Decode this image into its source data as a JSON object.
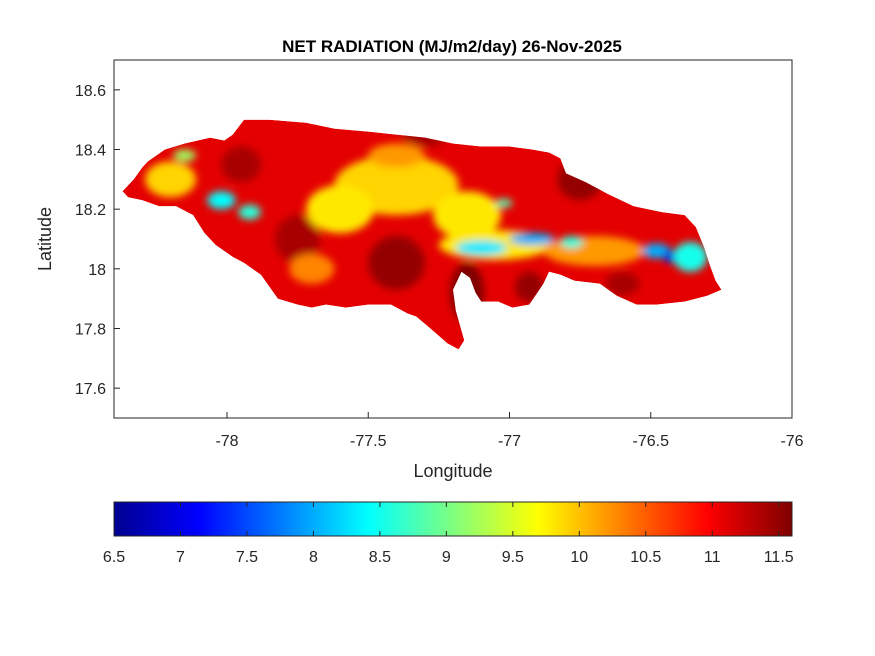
{
  "chart_data": {
    "type": "heatmap",
    "title": "NET RADIATION (MJ/m2/day) 26-Nov-2025",
    "xlabel": "Longitude",
    "ylabel": "Latitude",
    "xlim": [
      -78.4,
      -76
    ],
    "ylim": [
      17.5,
      18.7
    ],
    "xticks": [
      -78,
      -77.5,
      -77,
      -76.5,
      -76
    ],
    "yticks": [
      17.6,
      17.8,
      18,
      18.2,
      18.4,
      18.6
    ],
    "xtick_labels": [
      "-78",
      "-77.5",
      "-77",
      "-76.5",
      "-76"
    ],
    "ytick_labels": [
      "17.6",
      "17.8",
      "18",
      "18.2",
      "18.4",
      "18.6"
    ],
    "colorbar": {
      "colormap": "jet",
      "range": [
        6.5,
        11.6
      ],
      "ticks": [
        6.5,
        7,
        7.5,
        8,
        8.5,
        9,
        9.5,
        10,
        10.5,
        11,
        11.5
      ],
      "tick_labels": [
        "6.5",
        "7",
        "7.5",
        "8",
        "8.5",
        "9",
        "9.5",
        "10",
        "10.5",
        "11",
        "11.5"
      ],
      "orientation": "horizontal",
      "placement": "bottom"
    },
    "region_outline": [
      [
        -78.37,
        18.26
      ],
      [
        -78.33,
        18.3
      ],
      [
        -78.3,
        18.34
      ],
      [
        -78.28,
        18.36
      ],
      [
        -78.22,
        18.4
      ],
      [
        -78.15,
        18.42
      ],
      [
        -78.06,
        18.44
      ],
      [
        -78.01,
        18.43
      ],
      [
        -77.98,
        18.45
      ],
      [
        -77.94,
        18.5
      ],
      [
        -77.85,
        18.5
      ],
      [
        -77.72,
        18.49
      ],
      [
        -77.62,
        18.47
      ],
      [
        -77.5,
        18.46
      ],
      [
        -77.4,
        18.45
      ],
      [
        -77.3,
        18.44
      ],
      [
        -77.2,
        18.42
      ],
      [
        -77.1,
        18.41
      ],
      [
        -77.0,
        18.41
      ],
      [
        -76.92,
        18.4
      ],
      [
        -76.86,
        18.39
      ],
      [
        -76.82,
        18.37
      ],
      [
        -76.8,
        18.32
      ],
      [
        -76.73,
        18.29
      ],
      [
        -76.65,
        18.25
      ],
      [
        -76.56,
        18.21
      ],
      [
        -76.46,
        18.19
      ],
      [
        -76.38,
        18.18
      ],
      [
        -76.34,
        18.14
      ],
      [
        -76.31,
        18.07
      ],
      [
        -76.29,
        18.01
      ],
      [
        -76.27,
        17.96
      ],
      [
        -76.25,
        17.93
      ],
      [
        -76.3,
        17.91
      ],
      [
        -76.38,
        17.89
      ],
      [
        -76.48,
        17.88
      ],
      [
        -76.55,
        17.88
      ],
      [
        -76.62,
        17.91
      ],
      [
        -76.68,
        17.95
      ],
      [
        -76.77,
        17.96
      ],
      [
        -76.82,
        17.98
      ],
      [
        -76.86,
        17.99
      ],
      [
        -76.88,
        17.95
      ],
      [
        -76.93,
        17.88
      ],
      [
        -76.99,
        17.87
      ],
      [
        -77.04,
        17.89
      ],
      [
        -77.1,
        17.89
      ],
      [
        -77.12,
        17.92
      ],
      [
        -77.14,
        17.97
      ],
      [
        -77.17,
        17.99
      ],
      [
        -77.2,
        17.93
      ],
      [
        -77.19,
        17.86
      ],
      [
        -77.16,
        17.76
      ],
      [
        -77.18,
        17.73
      ],
      [
        -77.22,
        17.75
      ],
      [
        -77.28,
        17.8
      ],
      [
        -77.33,
        17.84
      ],
      [
        -77.36,
        17.85
      ],
      [
        -77.42,
        17.88
      ],
      [
        -77.5,
        17.88
      ],
      [
        -77.58,
        17.87
      ],
      [
        -77.65,
        17.88
      ],
      [
        -77.7,
        17.87
      ],
      [
        -77.75,
        17.88
      ],
      [
        -77.82,
        17.9
      ],
      [
        -77.88,
        17.98
      ],
      [
        -77.94,
        18.02
      ],
      [
        -77.98,
        18.04
      ],
      [
        -78.04,
        18.08
      ],
      [
        -78.08,
        18.12
      ],
      [
        -78.12,
        18.18
      ],
      [
        -78.18,
        18.21
      ],
      [
        -78.24,
        18.21
      ],
      [
        -78.3,
        18.23
      ],
      [
        -78.35,
        18.24
      ]
    ],
    "background_value": 11.1,
    "value_field": [
      {
        "lon": -77.4,
        "lat": 18.02,
        "value": 11.5,
        "rx": 0.1,
        "ry": 0.09
      },
      {
        "lon": -77.15,
        "lat": 17.92,
        "value": 11.6,
        "rx": 0.06,
        "ry": 0.1
      },
      {
        "lon": -76.93,
        "lat": 17.94,
        "value": 11.5,
        "rx": 0.05,
        "ry": 0.05
      },
      {
        "lon": -76.75,
        "lat": 18.3,
        "value": 11.5,
        "rx": 0.08,
        "ry": 0.07
      },
      {
        "lon": -77.75,
        "lat": 18.1,
        "value": 11.4,
        "rx": 0.08,
        "ry": 0.08
      },
      {
        "lon": -77.95,
        "lat": 18.35,
        "value": 11.4,
        "rx": 0.07,
        "ry": 0.06
      },
      {
        "lon": -77.3,
        "lat": 18.45,
        "value": 11.4,
        "rx": 0.08,
        "ry": 0.04
      },
      {
        "lon": -76.6,
        "lat": 17.95,
        "value": 11.4,
        "rx": 0.06,
        "ry": 0.04
      },
      {
        "lon": -77.4,
        "lat": 18.28,
        "value": 9.9,
        "rx": 0.22,
        "ry": 0.1
      },
      {
        "lon": -77.6,
        "lat": 18.2,
        "value": 9.8,
        "rx": 0.12,
        "ry": 0.08
      },
      {
        "lon": -77.15,
        "lat": 18.18,
        "value": 9.8,
        "rx": 0.12,
        "ry": 0.08
      },
      {
        "lon": -78.2,
        "lat": 18.3,
        "value": 9.9,
        "rx": 0.09,
        "ry": 0.06
      },
      {
        "lon": -77.05,
        "lat": 18.08,
        "value": 9.8,
        "rx": 0.2,
        "ry": 0.05
      },
      {
        "lon": -76.7,
        "lat": 18.06,
        "value": 10.2,
        "rx": 0.18,
        "ry": 0.05
      },
      {
        "lon": -77.7,
        "lat": 18.0,
        "value": 10.3,
        "rx": 0.08,
        "ry": 0.05
      },
      {
        "lon": -77.4,
        "lat": 18.38,
        "value": 10.2,
        "rx": 0.1,
        "ry": 0.04
      },
      {
        "lon": -78.02,
        "lat": 18.23,
        "value": 8.4,
        "rx": 0.05,
        "ry": 0.03
      },
      {
        "lon": -77.92,
        "lat": 18.19,
        "value": 8.6,
        "rx": 0.04,
        "ry": 0.025
      },
      {
        "lon": -77.1,
        "lat": 18.07,
        "value": 8.3,
        "rx": 0.09,
        "ry": 0.025
      },
      {
        "lon": -76.92,
        "lat": 18.1,
        "value": 8.0,
        "rx": 0.08,
        "ry": 0.02
      },
      {
        "lon": -76.78,
        "lat": 18.09,
        "value": 8.6,
        "rx": 0.04,
        "ry": 0.02
      },
      {
        "lon": -76.48,
        "lat": 18.06,
        "value": 8.0,
        "rx": 0.05,
        "ry": 0.025
      },
      {
        "lon": -76.43,
        "lat": 18.04,
        "value": 7.0,
        "rx": 0.025,
        "ry": 0.02
      },
      {
        "lon": -76.35,
        "lat": 18.04,
        "value": 6.8,
        "rx": 0.04,
        "ry": 0.035
      },
      {
        "lon": -76.36,
        "lat": 18.04,
        "value": 8.5,
        "rx": 0.06,
        "ry": 0.05
      },
      {
        "lon": -78.15,
        "lat": 18.38,
        "value": 9.2,
        "rx": 0.04,
        "ry": 0.02
      },
      {
        "lon": -77.02,
        "lat": 18.22,
        "value": 8.8,
        "rx": 0.03,
        "ry": 0.015
      }
    ]
  }
}
